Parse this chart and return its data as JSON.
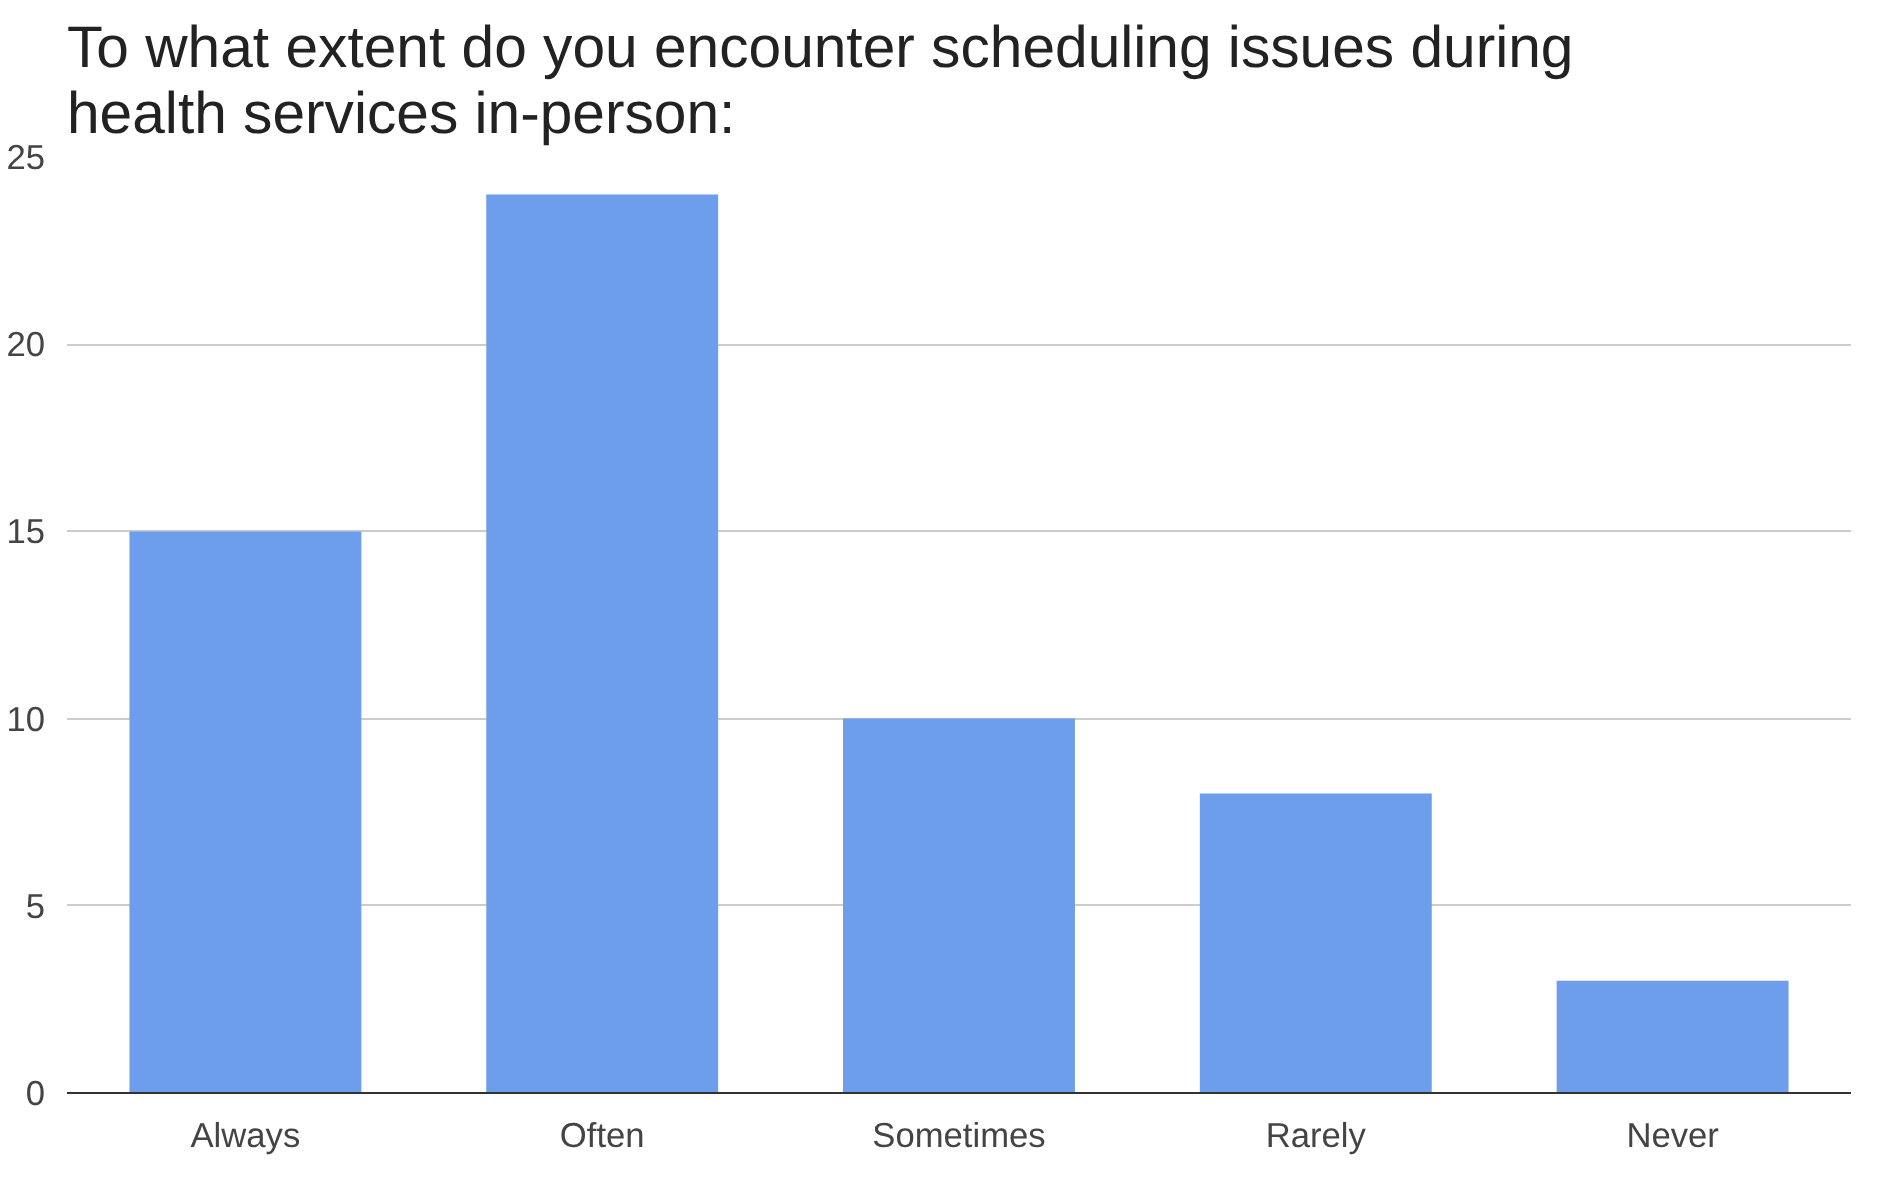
{
  "chart_data": {
    "type": "bar",
    "title": "To what extent do you encounter scheduling issues during\nhealth services in-person:",
    "categories": [
      "Always",
      "Often",
      "Sometimes",
      "Rarely",
      "Never"
    ],
    "values": [
      15,
      24,
      10,
      8,
      3
    ],
    "color": "#6d9eeb",
    "ylim": [
      0,
      25
    ],
    "yticks": [
      0,
      5,
      10,
      15,
      20,
      25
    ],
    "grid": "y"
  }
}
